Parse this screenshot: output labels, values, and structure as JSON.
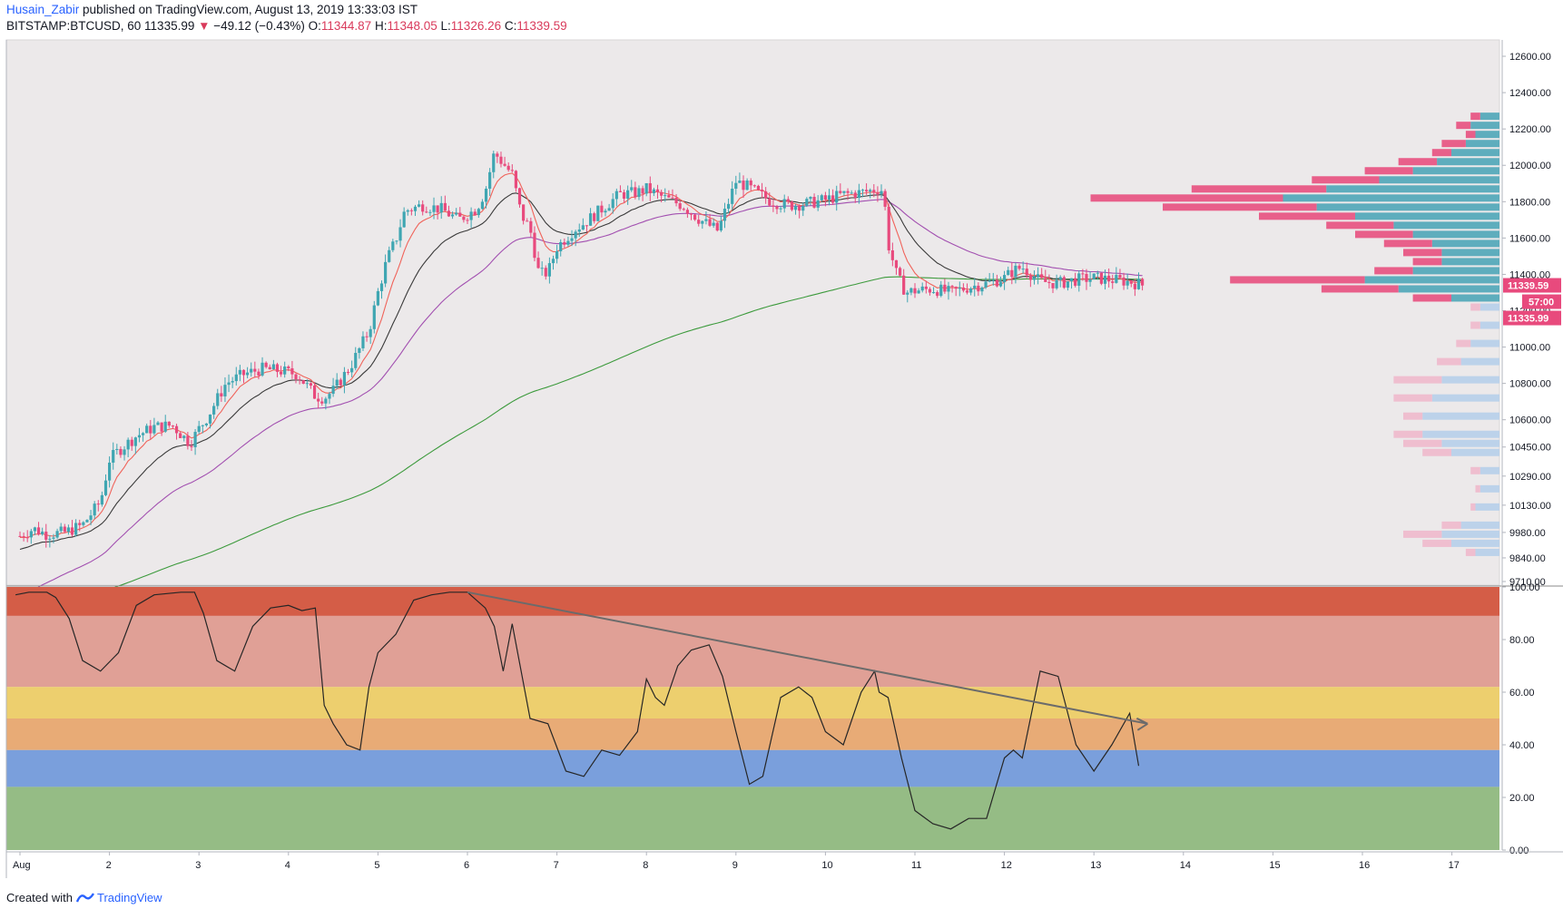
{
  "header": {
    "author": "Husain_Zabir",
    "published_text": " published on TradingView.com, August 13, 2019 13:33:03 IST",
    "symbol": "BITSTAMP:BTCUSD, 60",
    "last_price": "11335.99",
    "down_arrow": "▼",
    "change": "−49.12 (−0.43%)",
    "open_label": "O:",
    "open_value": "11344.87",
    "high_label": "H:",
    "high_value": "11348.05",
    "low_label": "L:",
    "low_value": "11326.26",
    "close_label": "C:",
    "close_value": "11339.59"
  },
  "footer": {
    "created_with": "Created with",
    "brand": "TradingView"
  },
  "colors": {
    "up": "#3fa6b2",
    "down": "#e84a7d",
    "ema_fast": "#f0635a",
    "ema_mid": "#3a3a3a",
    "ema_slow": "#a24fb0",
    "ema_200": "#3c9a3c",
    "pane_bg": "#ece9ea",
    "vp_up": "#4fa6b8",
    "vp_down": "#e8507f",
    "vp_up_light": "#b7cfea",
    "vp_down_light": "#efb9cc"
  },
  "chart_data": [
    {
      "type": "candlestick",
      "symbol": "BITSTAMP:BTCUSD",
      "interval": "60",
      "x_ticks": [
        "Aug",
        "2",
        "3",
        "4",
        "5",
        "6",
        "7",
        "8",
        "9",
        "10",
        "11",
        "12",
        "13",
        "14",
        "15",
        "16",
        "17"
      ],
      "y_ticks": [
        12600,
        12400,
        12200,
        12000,
        11800,
        11600,
        11400,
        11200,
        11000,
        10800,
        10600,
        10450,
        10290,
        10130,
        9980,
        9840,
        9710
      ],
      "ylim": [
        9690,
        12690
      ],
      "close_path": {
        "x": [
          1.0,
          1.15,
          1.3,
          1.5,
          1.7,
          1.9,
          2.0,
          2.1,
          2.3,
          2.5,
          2.7,
          2.9,
          3.0,
          3.1,
          3.3,
          3.5,
          3.7,
          3.9,
          4.1,
          4.3,
          4.4,
          4.5,
          4.7,
          4.9,
          5.0,
          5.1,
          5.2,
          5.3,
          5.5,
          5.7,
          5.9,
          6.1,
          6.2,
          6.3,
          6.4,
          6.5,
          6.6,
          6.7,
          6.8,
          6.9,
          7.0,
          7.1,
          7.2,
          7.3,
          7.5,
          7.7,
          7.9,
          8.0,
          8.2,
          8.4,
          8.6,
          8.8,
          9.0,
          9.1,
          9.2,
          9.4,
          9.6,
          9.8,
          10.0,
          10.2,
          10.4,
          10.6,
          10.65,
          10.7,
          10.8,
          10.9,
          11.0,
          11.2,
          11.4,
          11.6,
          11.8,
          12.0,
          12.1,
          12.2,
          12.3,
          12.4,
          12.6,
          12.8,
          13.0,
          13.2,
          13.4,
          13.55
        ],
        "y": [
          9960,
          10000,
          9970,
          9980,
          10020,
          10150,
          10380,
          10430,
          10510,
          10560,
          10570,
          10470,
          10550,
          10620,
          10800,
          10850,
          10880,
          10870,
          10850,
          10730,
          10720,
          10760,
          10900,
          11090,
          11300,
          11480,
          11590,
          11750,
          11780,
          11760,
          11700,
          11760,
          11860,
          12070,
          12010,
          11950,
          11730,
          11650,
          11400,
          11410,
          11550,
          11600,
          11650,
          11680,
          11760,
          11840,
          11850,
          11870,
          11820,
          11780,
          11700,
          11640,
          11910,
          11890,
          11860,
          11800,
          11780,
          11790,
          11810,
          11840,
          11850,
          11870,
          11860,
          11570,
          11390,
          11300,
          11310,
          11320,
          11300,
          11330,
          11350,
          11380,
          11420,
          11440,
          11400,
          11360,
          11350,
          11370,
          11380,
          11370,
          11360,
          11340
        ]
      },
      "last_close": 11339.59,
      "countdown": "57:00",
      "last_price": 11335.99
    },
    {
      "type": "line",
      "name": "oscillator",
      "x_ticks": [
        "Aug",
        "2",
        "3",
        "4",
        "5",
        "6",
        "7",
        "8",
        "9",
        "10",
        "11",
        "12",
        "13",
        "14",
        "15",
        "16",
        "17"
      ],
      "y_ticks": [
        100.0,
        80.0,
        60.0,
        40.0,
        20.0,
        0.0
      ],
      "ylim": [
        0,
        100
      ],
      "zones": [
        {
          "from": 89,
          "to": 100,
          "color": "#d45d47"
        },
        {
          "from": 62,
          "to": 89,
          "color": "#e0a096"
        },
        {
          "from": 50,
          "to": 62,
          "color": "#edcf6e"
        },
        {
          "from": 38,
          "to": 50,
          "color": "#e8ab76"
        },
        {
          "from": 24,
          "to": 38,
          "color": "#7a9fdc"
        },
        {
          "from": 0,
          "to": 24,
          "color": "#95bc85"
        }
      ],
      "x": [
        0.95,
        1.1,
        1.3,
        1.4,
        1.55,
        1.7,
        1.9,
        2.1,
        2.3,
        2.5,
        2.8,
        2.95,
        3.05,
        3.2,
        3.4,
        3.6,
        3.8,
        4.0,
        4.15,
        4.3,
        4.4,
        4.5,
        4.65,
        4.8,
        4.9,
        5.0,
        5.2,
        5.4,
        5.6,
        5.8,
        6.0,
        6.2,
        6.3,
        6.4,
        6.5,
        6.7,
        6.9,
        7.1,
        7.3,
        7.5,
        7.7,
        7.9,
        8.0,
        8.1,
        8.2,
        8.35,
        8.5,
        8.7,
        8.85,
        9.0,
        9.15,
        9.3,
        9.5,
        9.7,
        9.85,
        10.0,
        10.2,
        10.4,
        10.55,
        10.6,
        10.7,
        10.85,
        11.0,
        11.2,
        11.4,
        11.6,
        11.8,
        12.0,
        12.1,
        12.2,
        12.4,
        12.6,
        12.8,
        13.0,
        13.2,
        13.4,
        13.5
      ],
      "y": [
        97,
        98,
        98,
        96,
        88,
        72,
        68,
        75,
        93,
        97,
        98,
        98,
        90,
        72,
        68,
        85,
        92,
        93,
        91,
        92,
        55,
        48,
        40,
        38,
        62,
        75,
        82,
        95,
        97,
        98,
        98,
        92,
        85,
        68,
        86,
        50,
        48,
        30,
        28,
        38,
        36,
        45,
        65,
        58,
        55,
        70,
        76,
        78,
        66,
        45,
        25,
        28,
        58,
        62,
        58,
        45,
        40,
        60,
        68,
        60,
        58,
        35,
        15,
        10,
        8,
        12,
        12,
        35,
        38,
        35,
        68,
        66,
        40,
        30,
        40,
        52,
        32
      ]
    },
    {
      "type": "bar",
      "name": "volume profile (horizontal)",
      "price": [
        12250,
        12200,
        12150,
        12100,
        12050,
        12000,
        11950,
        11900,
        11850,
        11800,
        11750,
        11700,
        11650,
        11600,
        11550,
        11500,
        11450,
        11400,
        11350,
        11300,
        11250,
        11200,
        11100,
        11000,
        10900,
        10800,
        10700,
        10600,
        10500,
        10450,
        10400,
        10300,
        10200,
        10100,
        10000,
        9950,
        9900,
        9850
      ],
      "up_volume": [
        0.04,
        0.06,
        0.05,
        0.07,
        0.1,
        0.13,
        0.18,
        0.25,
        0.36,
        0.45,
        0.38,
        0.3,
        0.22,
        0.18,
        0.14,
        0.12,
        0.12,
        0.18,
        0.28,
        0.21,
        0.1,
        0.04,
        0.04,
        0.06,
        0.08,
        0.12,
        0.14,
        0.16,
        0.16,
        0.12,
        0.1,
        0.04,
        0.04,
        0.05,
        0.08,
        0.12,
        0.1,
        0.05
      ],
      "down_volume": [
        0.02,
        0.03,
        0.02,
        0.05,
        0.04,
        0.08,
        0.1,
        0.14,
        0.28,
        0.4,
        0.32,
        0.2,
        0.14,
        0.12,
        0.1,
        0.08,
        0.06,
        0.08,
        0.28,
        0.16,
        0.08,
        0.02,
        0.02,
        0.03,
        0.05,
        0.1,
        0.08,
        0.04,
        0.06,
        0.08,
        0.06,
        0.02,
        0.01,
        0.01,
        0.04,
        0.08,
        0.06,
        0.02
      ]
    }
  ]
}
